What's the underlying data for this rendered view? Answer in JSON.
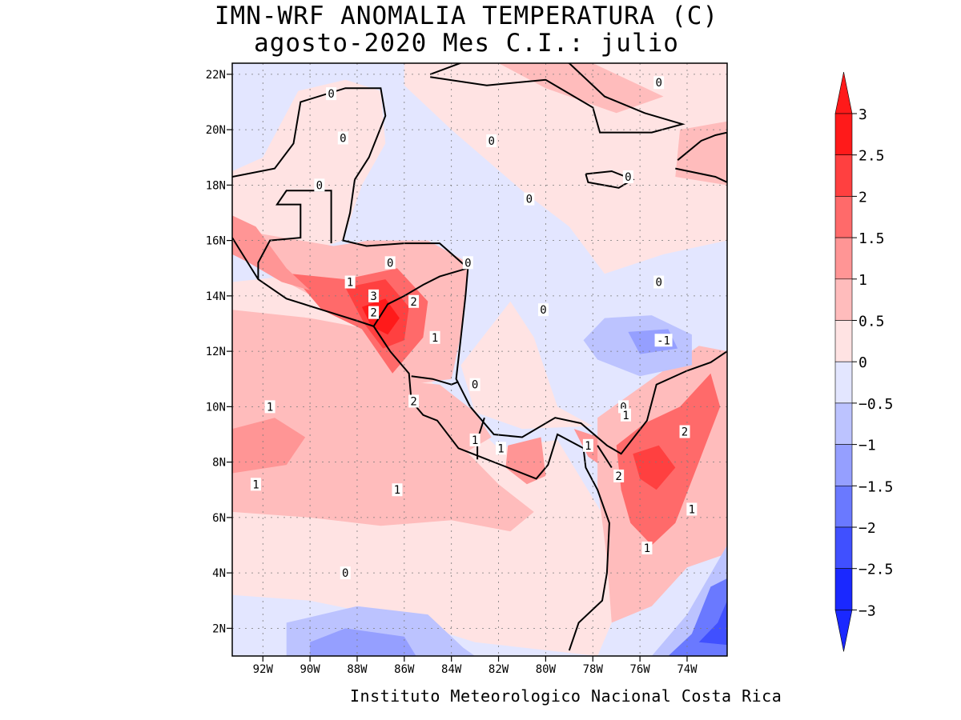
{
  "header": {
    "title_line1": "IMN-WRF  ANOMALIA TEMPERATURA (C)",
    "title_line2": "agosto-2020 Mes C.I.: julio"
  },
  "footer": {
    "credit": "Instituto Meteorologico Nacional Costa Rica"
  },
  "map": {
    "extent": {
      "lon_min": -93.3,
      "lon_max": -72.3,
      "lat_min": 1.0,
      "lat_max": 22.4
    },
    "lon_ticks": [
      {
        "value": -92,
        "label": "92W"
      },
      {
        "value": -90,
        "label": "90W"
      },
      {
        "value": -88,
        "label": "88W"
      },
      {
        "value": -86,
        "label": "86W"
      },
      {
        "value": -84,
        "label": "84W"
      },
      {
        "value": -82,
        "label": "82W"
      },
      {
        "value": -80,
        "label": "80W"
      },
      {
        "value": -78,
        "label": "78W"
      },
      {
        "value": -76,
        "label": "76W"
      },
      {
        "value": -74,
        "label": "74W"
      }
    ],
    "lat_ticks": [
      {
        "value": 2,
        "label": "2N"
      },
      {
        "value": 4,
        "label": "4N"
      },
      {
        "value": 6,
        "label": "6N"
      },
      {
        "value": 8,
        "label": "8N"
      },
      {
        "value": 10,
        "label": "10N"
      },
      {
        "value": 12,
        "label": "12N"
      },
      {
        "value": 14,
        "label": "14N"
      },
      {
        "value": 16,
        "label": "16N"
      },
      {
        "value": 18,
        "label": "18N"
      },
      {
        "value": 20,
        "label": "20N"
      },
      {
        "value": 22,
        "label": "22N"
      }
    ],
    "contour_labels": [
      {
        "lon": -89.1,
        "lat": 21.3,
        "text": "0"
      },
      {
        "lon": -82.3,
        "lat": 19.6,
        "text": "0"
      },
      {
        "lon": -80.7,
        "lat": 17.5,
        "text": "0"
      },
      {
        "lon": -75.2,
        "lat": 21.7,
        "text": "0"
      },
      {
        "lon": -76.5,
        "lat": 18.3,
        "text": "0"
      },
      {
        "lon": -88.6,
        "lat": 19.7,
        "text": "0"
      },
      {
        "lon": -89.6,
        "lat": 18.0,
        "text": "0"
      },
      {
        "lon": -86.6,
        "lat": 15.2,
        "text": "0"
      },
      {
        "lon": -83.3,
        "lat": 15.2,
        "text": "0"
      },
      {
        "lon": -75.2,
        "lat": 14.5,
        "text": "0"
      },
      {
        "lon": -80.1,
        "lat": 13.5,
        "text": "0"
      },
      {
        "lon": -83.0,
        "lat": 10.8,
        "text": "0"
      },
      {
        "lon": -76.7,
        "lat": 10.0,
        "text": "0"
      },
      {
        "lon": -88.5,
        "lat": 4.0,
        "text": "0"
      },
      {
        "lon": -88.3,
        "lat": 14.5,
        "text": "1"
      },
      {
        "lon": -84.7,
        "lat": 12.5,
        "text": "1"
      },
      {
        "lon": -91.7,
        "lat": 10.0,
        "text": "1"
      },
      {
        "lon": -92.3,
        "lat": 7.2,
        "text": "1"
      },
      {
        "lon": -86.3,
        "lat": 7.0,
        "text": "1"
      },
      {
        "lon": -83.0,
        "lat": 8.8,
        "text": "1"
      },
      {
        "lon": -81.9,
        "lat": 8.5,
        "text": "1"
      },
      {
        "lon": -78.2,
        "lat": 8.6,
        "text": "1"
      },
      {
        "lon": -76.6,
        "lat": 9.7,
        "text": "1"
      },
      {
        "lon": -73.8,
        "lat": 6.3,
        "text": "1"
      },
      {
        "lon": -75.7,
        "lat": 4.9,
        "text": "1"
      },
      {
        "lon": -87.3,
        "lat": 14.0,
        "text": "3"
      },
      {
        "lon": -87.3,
        "lat": 13.4,
        "text": "2"
      },
      {
        "lon": -85.6,
        "lat": 13.8,
        "text": "2"
      },
      {
        "lon": -85.6,
        "lat": 10.2,
        "text": "2"
      },
      {
        "lon": -76.9,
        "lat": 7.5,
        "text": "2"
      },
      {
        "lon": -74.1,
        "lat": 9.1,
        "text": "2"
      },
      {
        "lon": -75.0,
        "lat": 12.4,
        "text": "-1"
      }
    ]
  },
  "colorbar": {
    "levels": [
      "3",
      "2.5",
      "2",
      "1.5",
      "1",
      "0.5",
      "0",
      "−0.5",
      "−1",
      "−1.5",
      "−2",
      "−2.5",
      "−3"
    ],
    "colors": [
      "#ff1a1a",
      "#ff4040",
      "#ff6a6a",
      "#ff9595",
      "#ffbcbc",
      "#ffe3e3",
      "#e3e6ff",
      "#bcc3ff",
      "#959fff",
      "#6a79ff",
      "#4050ff",
      "#1a28ff"
    ]
  },
  "fill_colors": {
    "ocean_neutral": "#e3e6ff",
    "warm_05": "#ffe3e3",
    "warm_1": "#ffbcbc",
    "warm_15": "#ff9595",
    "warm_2": "#ff6a6a",
    "warm_25": "#ff4040",
    "warm_3": "#ff1a1a",
    "cool_05": "#bcc3ff",
    "cool_1": "#959fff",
    "cool_15": "#6a79ff",
    "cool_2": "#4050ff"
  }
}
